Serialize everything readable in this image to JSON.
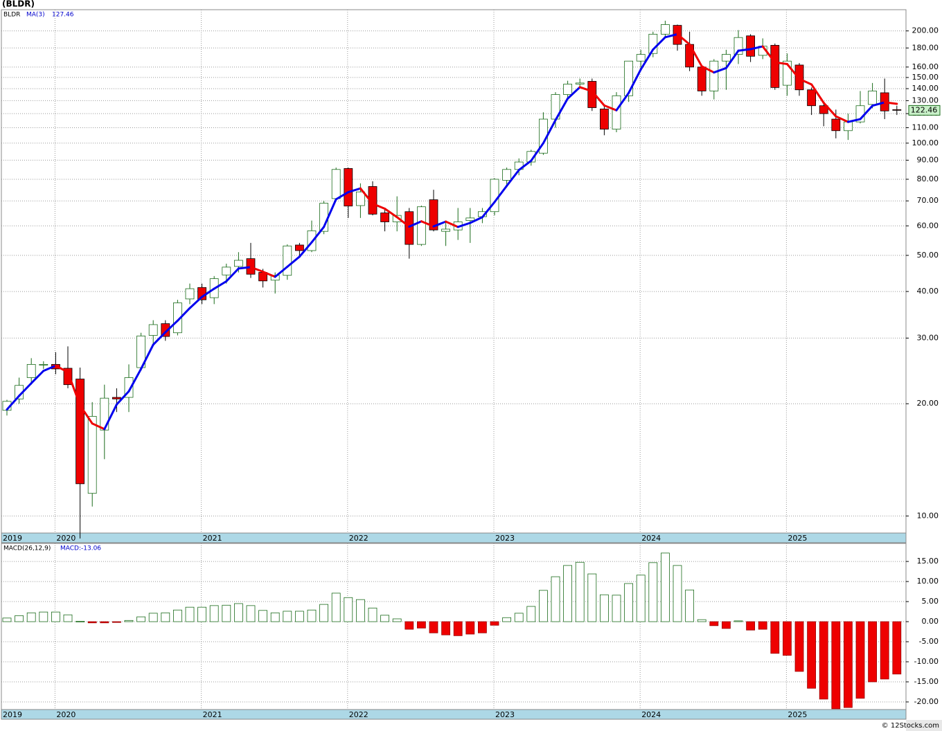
{
  "chart_data": [
    {
      "type": "candlestick",
      "title": "(BLDR)",
      "legend": [
        "BLDR",
        "MA(3)",
        "127.46"
      ],
      "last_price_label": "122.46",
      "categories": [
        "2019",
        null,
        null,
        null,
        "2020",
        null,
        null,
        null,
        null,
        null,
        null,
        null,
        null,
        null,
        null,
        null,
        "2021",
        null,
        null,
        null,
        null,
        null,
        null,
        null,
        null,
        null,
        null,
        null,
        "2022",
        null,
        null,
        null,
        null,
        null,
        null,
        null,
        null,
        null,
        null,
        null,
        "2023",
        null,
        null,
        null,
        null,
        null,
        null,
        null,
        null,
        null,
        null,
        null,
        "2024",
        null,
        null,
        null,
        null,
        null,
        null,
        null,
        null,
        null,
        null,
        null,
        "2025",
        null,
        null,
        null,
        null,
        null,
        null,
        null,
        null,
        null
      ],
      "open": [
        19.2,
        20.6,
        23.5,
        25.4,
        25.5,
        24.9,
        23.3,
        11.5,
        17,
        20.8,
        20.8,
        25,
        30.5,
        32.8,
        31,
        38.2,
        41,
        38.5,
        44.3,
        46.7,
        49,
        45,
        42.9,
        44.2,
        53.3,
        51.5,
        58,
        71,
        85.5,
        68,
        76.5,
        65,
        61.5,
        65.5,
        53.5,
        70.5,
        58,
        58.5,
        62,
        63.5,
        65.5,
        79.5,
        85,
        89,
        94,
        116,
        135,
        144,
        146.5,
        123.5,
        109,
        134,
        166,
        174,
        196,
        207,
        184,
        160,
        138,
        166,
        173,
        194,
        172,
        183,
        143,
        162,
        139,
        126,
        116,
        108,
        114,
        127,
        136.5,
        123
      ],
      "high": [
        20.5,
        23.5,
        26.5,
        26,
        27.5,
        28.5,
        25,
        20.2,
        22.5,
        22,
        25.5,
        31,
        33.5,
        33.5,
        38,
        42,
        42,
        44,
        47.5,
        51,
        54,
        46,
        45,
        53.5,
        54,
        62,
        70,
        86,
        86,
        78,
        79,
        67,
        72,
        67,
        68,
        75,
        62,
        67,
        67,
        67,
        80.5,
        86,
        91,
        96,
        121,
        137,
        147,
        149,
        149,
        127,
        137,
        166,
        178,
        199,
        213,
        208,
        199,
        162,
        168,
        178,
        201,
        196,
        191,
        185,
        174,
        164,
        141,
        128,
        123,
        120,
        138,
        145,
        149,
        126
      ],
      "low": [
        18.6,
        20,
        22.5,
        24.8,
        24,
        22,
        8.7,
        10.6,
        14.2,
        19,
        19,
        24.5,
        29,
        29.5,
        30.5,
        37,
        37,
        37,
        42,
        45,
        43.5,
        41,
        39.5,
        43,
        50,
        51,
        57,
        70,
        63,
        63,
        64,
        58,
        58,
        49,
        53,
        58,
        53,
        55,
        54,
        61,
        64,
        76,
        82,
        87,
        93,
        110,
        131,
        140,
        122,
        105,
        107,
        129,
        156,
        170,
        193,
        177,
        156,
        134,
        131,
        139,
        163,
        165,
        168,
        139,
        134,
        134,
        119,
        111,
        103,
        102,
        113,
        124,
        116,
        119
      ],
      "close": [
        20.3,
        22.4,
        25.5,
        25.5,
        24.8,
        22.5,
        12.2,
        18.5,
        20.7,
        20.6,
        23.5,
        30.4,
        32.6,
        30.3,
        37.3,
        40.7,
        38,
        43.3,
        46.5,
        48.5,
        44.5,
        42.7,
        44.2,
        53,
        51.5,
        58.2,
        69,
        85,
        67.8,
        74,
        64.5,
        61.5,
        64,
        53.5,
        67.5,
        58.5,
        58.8,
        61.5,
        63,
        65.5,
        80,
        85,
        89,
        95,
        116,
        135,
        144,
        145,
        124.5,
        109,
        134,
        166,
        173,
        196,
        208,
        184,
        160,
        138,
        166,
        173,
        192,
        171,
        182,
        141,
        166,
        139,
        126,
        120,
        108,
        114,
        126,
        138,
        122,
        122.46
      ],
      "ma": {
        "name": "MA(3)",
        "up_color": "#0000ee",
        "down_color": "#ee0000",
        "values": [
          19.3,
          21,
          22.7,
          24.5,
          25.3,
          24.3,
          19.8,
          17.7,
          17.1,
          19.9,
          21.6,
          24.8,
          28.8,
          31.1,
          33.4,
          36.1,
          38.7,
          40.7,
          42.6,
          46.1,
          46.5,
          45.2,
          43.8,
          46.6,
          49.6,
          54.2,
          59.6,
          70.7,
          73.9,
          75.6,
          68.8,
          66.7,
          63.3,
          59.7,
          61.7,
          59.8,
          61.6,
          59.6,
          61.1,
          63.3,
          69.5,
          76.8,
          84.7,
          89.7,
          100,
          115.3,
          131.7,
          141.3,
          137.8,
          126.2,
          122.5,
          136.3,
          157.7,
          178.3,
          192.3,
          196,
          184,
          160.7,
          154.7,
          159,
          177,
          178.7,
          181.7,
          164.7,
          163,
          148.7,
          143.7,
          128.3,
          118,
          114,
          116,
          126,
          128.7,
          127.46
        ]
      },
      "up_color": "#ffffff",
      "down_color": "#ee0000",
      "edge_color": "#1a6b1a",
      "log": true,
      "grid": true,
      "ylim": [
        9,
        228
      ],
      "yticks": [
        {
          "value": 10,
          "label": "10.00"
        },
        {
          "value": 20,
          "label": "20.00"
        },
        {
          "value": 30,
          "label": "30.00"
        },
        {
          "value": 40,
          "label": "40.00"
        },
        {
          "value": 50,
          "label": "50.00"
        },
        {
          "value": 60,
          "label": "60.00"
        },
        {
          "value": 70,
          "label": "70.00"
        },
        {
          "value": 80,
          "label": "80.00"
        },
        {
          "value": 90,
          "label": "90.00"
        },
        {
          "value": 100,
          "label": "100.00"
        },
        {
          "value": 110,
          "label": "110.00"
        },
        {
          "value": 120,
          "label": "120.00"
        },
        {
          "value": 130,
          "label": "130.00"
        },
        {
          "value": 140,
          "label": "140.00"
        },
        {
          "value": 150,
          "label": "150.00"
        },
        {
          "value": 160,
          "label": "160.00"
        },
        {
          "value": 180,
          "label": "180.00"
        },
        {
          "value": 200,
          "label": "200.00"
        }
      ]
    },
    {
      "type": "bar",
      "title": "MACD(26,12,9)",
      "subtitle": "MACD:-13.06",
      "categories": [
        "2019",
        null,
        null,
        null,
        "2020",
        null,
        null,
        null,
        null,
        null,
        null,
        null,
        null,
        null,
        null,
        null,
        "2021",
        null,
        null,
        null,
        null,
        null,
        null,
        null,
        null,
        null,
        null,
        null,
        "2022",
        null,
        null,
        null,
        null,
        null,
        null,
        null,
        null,
        null,
        null,
        null,
        "2023",
        null,
        null,
        null,
        null,
        null,
        null,
        null,
        null,
        null,
        null,
        null,
        "2024",
        null,
        null,
        null,
        null,
        null,
        null,
        null,
        null,
        null,
        null,
        null,
        "2025",
        null,
        null,
        null,
        null,
        null,
        null,
        null,
        null,
        null
      ],
      "values": [
        0.9,
        1.5,
        2.2,
        2.4,
        2.4,
        1.7,
        0.1,
        -0.3,
        -0.3,
        -0.2,
        0.3,
        1.2,
        2.1,
        2.2,
        2.9,
        3.6,
        3.6,
        4,
        4.1,
        4.5,
        4,
        2.8,
        2.2,
        2.6,
        2.6,
        2.9,
        4.3,
        7.1,
        6,
        5.5,
        3.4,
        1.6,
        0.7,
        -1.9,
        -1.6,
        -2.8,
        -3.3,
        -3.5,
        -3.1,
        -2.8,
        -0.9,
        1,
        2.1,
        3.8,
        7.8,
        11.2,
        14,
        14.8,
        11.9,
        6.7,
        6.6,
        9.5,
        11.6,
        14.7,
        17.1,
        14,
        7.9,
        0.5,
        -1,
        -1.7,
        0.2,
        -2.1,
        -1.9,
        -7.9,
        -8.4,
        -12.4,
        -16.6,
        -19.3,
        -21.7,
        -21.4,
        -19.1,
        -15,
        -14.3,
        -13.06
      ],
      "pos_color": "#ffffff",
      "neg_color": "#ee0000",
      "edge_color": "#1a6b1a",
      "grid": true,
      "ylim": [
        -21.9,
        19.5
      ],
      "yticks": [
        {
          "value": -20,
          "label": "-20.00"
        },
        {
          "value": -15,
          "label": "-15.00"
        },
        {
          "value": -10,
          "label": "-10.00"
        },
        {
          "value": -5,
          "label": "-5.00"
        },
        {
          "value": 0,
          "label": "0.00"
        },
        {
          "value": 5,
          "label": "5.00"
        },
        {
          "value": 10,
          "label": "10.00"
        },
        {
          "value": 15,
          "label": "15.00"
        }
      ]
    }
  ],
  "footer": "© 12Stocks.com"
}
